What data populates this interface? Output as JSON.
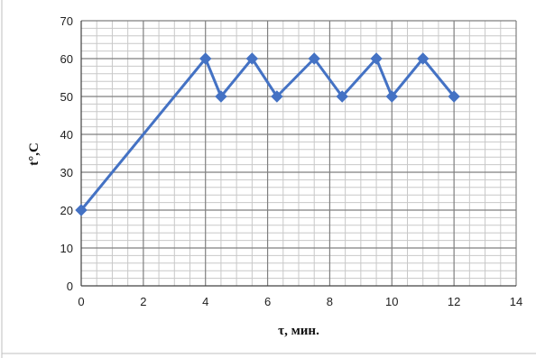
{
  "chart_data": {
    "type": "line",
    "title": "",
    "xlabel": "τ, мин.",
    "ylabel": "t°,C",
    "xlim": [
      0,
      14
    ],
    "ylim": [
      0,
      70
    ],
    "x_ticks": [
      "0",
      "2",
      "4",
      "6",
      "8",
      "10",
      "12",
      "14"
    ],
    "y_ticks": [
      "0",
      "10",
      "20",
      "30",
      "40",
      "50",
      "60",
      "70"
    ],
    "grid": true,
    "legend": "none",
    "series": [
      {
        "color": "#4472C4",
        "marker": "diamond",
        "points": [
          {
            "x": 0,
            "y": 20
          },
          {
            "x": 4,
            "y": 60
          },
          {
            "x": 4.5,
            "y": 50
          },
          {
            "x": 5.5,
            "y": 60
          },
          {
            "x": 6.3,
            "y": 50
          },
          {
            "x": 7.5,
            "y": 60
          },
          {
            "x": 8.4,
            "y": 50
          },
          {
            "x": 9.5,
            "y": 60
          },
          {
            "x": 10,
            "y": 50
          },
          {
            "x": 11,
            "y": 60
          },
          {
            "x": 12,
            "y": 50
          }
        ]
      }
    ]
  }
}
